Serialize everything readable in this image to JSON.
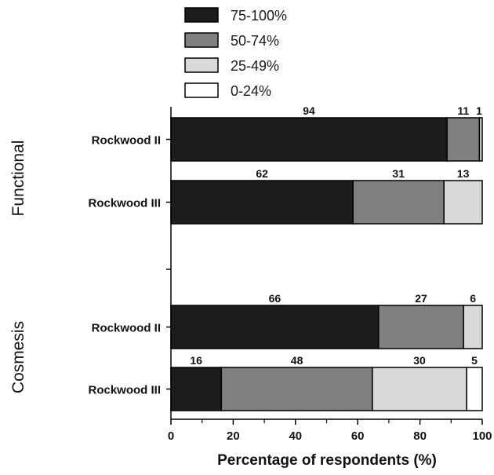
{
  "chart_data": {
    "type": "bar",
    "orientation": "horizontal",
    "stacked": true,
    "xlabel": "Percentage of respondents (%)",
    "xlim": [
      0,
      100
    ],
    "x_ticks": [
      "0",
      "20",
      "40",
      "60",
      "80",
      "100"
    ],
    "legend": {
      "placement": "top",
      "entries": [
        {
          "label": "75-100%",
          "color": "#1c1c1c"
        },
        {
          "label": "50-74%",
          "color": "#808080"
        },
        {
          "label": "25-49%",
          "color": "#d9d9d9"
        },
        {
          "label": "0-24%",
          "color": "#ffffff"
        }
      ]
    },
    "groups": [
      {
        "name": "Functional",
        "bars": [
          {
            "category": "Rockwood II",
            "segments": [
              {
                "series": "75-100%",
                "count": "94",
                "percent": 88.7
              },
              {
                "series": "50-74%",
                "count": "11",
                "percent": 10.4
              },
              {
                "series": "25-49%",
                "count": "1",
                "percent": 0.9
              }
            ]
          },
          {
            "category": "Rockwood III",
            "segments": [
              {
                "series": "75-100%",
                "count": "62",
                "percent": 58.5
              },
              {
                "series": "50-74%",
                "count": "31",
                "percent": 29.2
              },
              {
                "series": "25-49%",
                "count": "13",
                "percent": 12.3
              }
            ]
          }
        ]
      },
      {
        "name": "Cosmesis",
        "bars": [
          {
            "category": "Rockwood II",
            "segments": [
              {
                "series": "75-100%",
                "count": "66",
                "percent": 66.7
              },
              {
                "series": "50-74%",
                "count": "27",
                "percent": 27.3
              },
              {
                "series": "25-49%",
                "count": "6",
                "percent": 6.1
              }
            ]
          },
          {
            "category": "Rockwood III",
            "segments": [
              {
                "series": "75-100%",
                "count": "16",
                "percent": 16.2
              },
              {
                "series": "50-74%",
                "count": "48",
                "percent": 48.5
              },
              {
                "series": "25-49%",
                "count": "30",
                "percent": 30.3
              },
              {
                "series": "0-24%",
                "count": "5",
                "percent": 5.1
              }
            ]
          }
        ]
      }
    ]
  }
}
